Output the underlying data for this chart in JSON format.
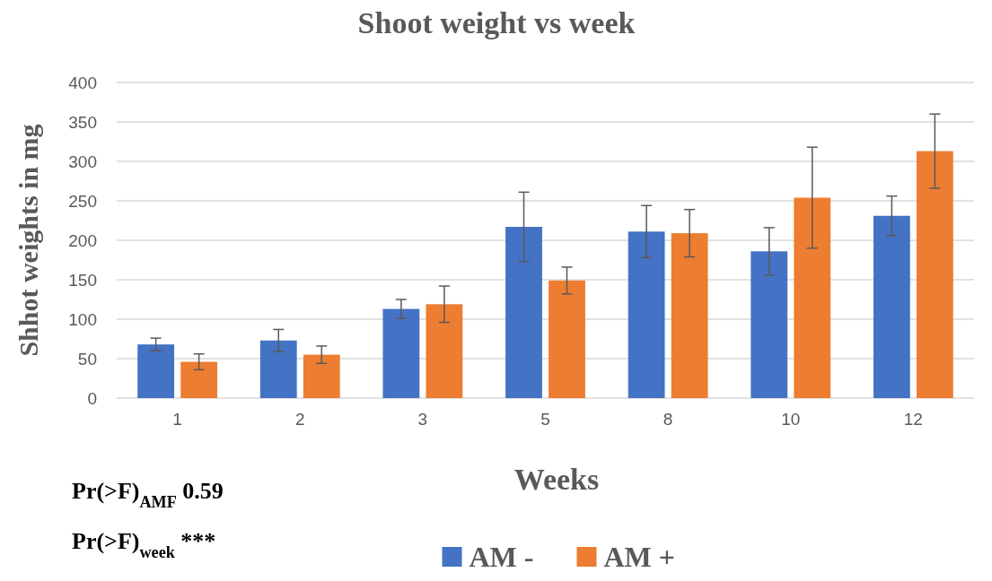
{
  "chart_data": {
    "type": "bar",
    "title": "Shoot weight vs week",
    "xlabel": "Weeks",
    "ylabel": "Shhot weights in mg",
    "categories": [
      "1",
      "2",
      "3",
      "5",
      "8",
      "10",
      "12"
    ],
    "series": [
      {
        "name": "AM -",
        "color": "#4472c4",
        "values": [
          68,
          73,
          113,
          217,
          211,
          186,
          231
        ],
        "errors": [
          8,
          14,
          12,
          44,
          33,
          30,
          25
        ]
      },
      {
        "name": "AM +",
        "color": "#ed7d31",
        "values": [
          46,
          55,
          119,
          149,
          209,
          254,
          313
        ],
        "errors": [
          10,
          11,
          23,
          17,
          30,
          64,
          47
        ]
      }
    ],
    "ylim": [
      0,
      400
    ],
    "yticks": [
      0,
      50,
      100,
      150,
      200,
      250,
      300,
      350,
      400
    ],
    "grid": "y",
    "legend": "bottom",
    "annotations": [
      "Pr(>F)$_{AMF}$ 0.59",
      "Pr(>F)$_{week}$ ***"
    ]
  }
}
